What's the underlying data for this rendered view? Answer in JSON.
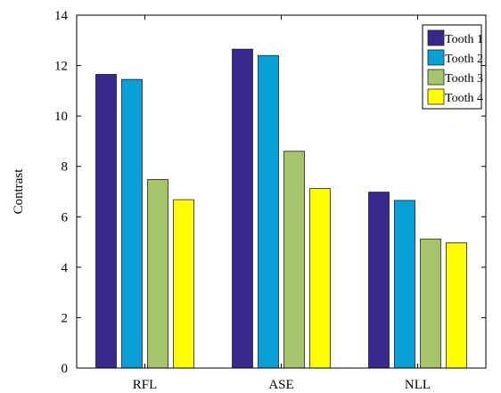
{
  "chart_data": {
    "type": "bar",
    "title": "",
    "xlabel": "",
    "ylabel": "Contrast",
    "ylim": [
      0,
      14
    ],
    "yticks": [
      0,
      2,
      4,
      6,
      8,
      10,
      12,
      14
    ],
    "categories": [
      "RFL",
      "ASE",
      "NLL"
    ],
    "grid": false,
    "legend_position": "top-right",
    "series": [
      {
        "name": "Tooth 1",
        "color": "#36298a",
        "values": [
          11.65,
          12.65,
          6.98
        ]
      },
      {
        "name": "Tooth 2",
        "color": "#069fd6",
        "values": [
          11.45,
          12.4,
          6.65
        ]
      },
      {
        "name": "Tooth 3",
        "color": "#a6c46a",
        "values": [
          7.48,
          8.6,
          5.12
        ]
      },
      {
        "name": "Tooth 4",
        "color": "#ffff00",
        "values": [
          6.68,
          7.12,
          4.97
        ]
      }
    ]
  }
}
